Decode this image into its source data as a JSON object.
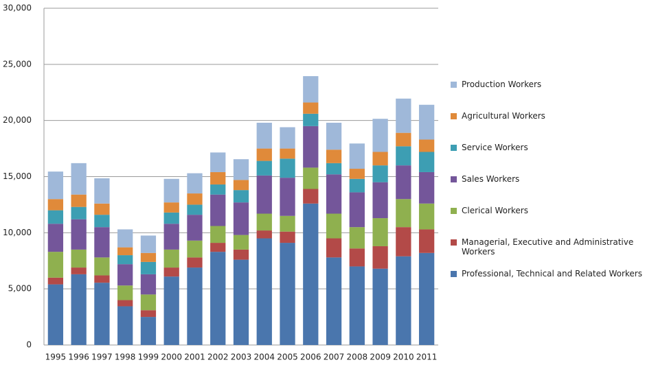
{
  "chart_data": {
    "type": "stacked_bar",
    "categories": [
      "1995",
      "1996",
      "1997",
      "1998",
      "1999",
      "2000",
      "2001",
      "2002",
      "2003",
      "2004",
      "2005",
      "2006",
      "2007",
      "2008",
      "2009",
      "2010",
      "2011"
    ],
    "series": [
      {
        "name": "Professional, Technical and Related Workers",
        "color": "#4a76ad",
        "values": [
          5400,
          6300,
          5550,
          3450,
          2500,
          6100,
          6900,
          8300,
          7600,
          9500,
          9100,
          12600,
          7800,
          7000,
          6800,
          7900,
          8200
        ]
      },
      {
        "name": "Managerial, Executive and Administrative Workers",
        "color": "#b34a48",
        "values": [
          600,
          600,
          650,
          550,
          600,
          800,
          900,
          800,
          900,
          700,
          1000,
          1300,
          1700,
          1600,
          2000,
          2600,
          2100
        ]
      },
      {
        "name": "Clerical Workers",
        "color": "#8fb04f",
        "values": [
          2300,
          1600,
          1600,
          1300,
          1400,
          1600,
          1500,
          1500,
          1300,
          1500,
          1400,
          1900,
          2200,
          1900,
          2500,
          2500,
          2300
        ]
      },
      {
        "name": "Sales Workers",
        "color": "#74569a",
        "values": [
          2500,
          2700,
          2700,
          1900,
          1800,
          2300,
          2300,
          2800,
          2900,
          3400,
          3400,
          3700,
          3500,
          3100,
          3200,
          3000,
          2800
        ]
      },
      {
        "name": "Service Workers",
        "color": "#3d9eb3",
        "values": [
          1200,
          1100,
          1100,
          800,
          1100,
          1000,
          900,
          900,
          1100,
          1300,
          1700,
          1100,
          1000,
          1200,
          1500,
          1700,
          1800
        ]
      },
      {
        "name": "Agricultural Workers",
        "color": "#e08a3a",
        "values": [
          1000,
          1100,
          1000,
          700,
          800,
          900,
          1000,
          1100,
          900,
          1100,
          900,
          1000,
          1200,
          900,
          1200,
          1200,
          1100
        ]
      },
      {
        "name": "Production Workers",
        "color": "#9fb8d9",
        "values": [
          2450,
          2800,
          2250,
          1600,
          1550,
          2100,
          1800,
          1750,
          1850,
          2300,
          1900,
          2350,
          2400,
          2250,
          2950,
          3050,
          3100
        ]
      }
    ],
    "ylim": [
      0,
      30000
    ],
    "yticks": [
      0,
      {
        "value": 5000,
        "label": "5,000"
      },
      {
        "value": 10000,
        "label": "10,000"
      },
      {
        "value": 15000,
        "label": "15,000"
      },
      {
        "value": 20000,
        "label": "20,000"
      },
      {
        "value": 25000,
        "label": "25,000"
      },
      {
        "value": 30000,
        "label": "30,000"
      }
    ],
    "grid": true,
    "legend": "right"
  }
}
